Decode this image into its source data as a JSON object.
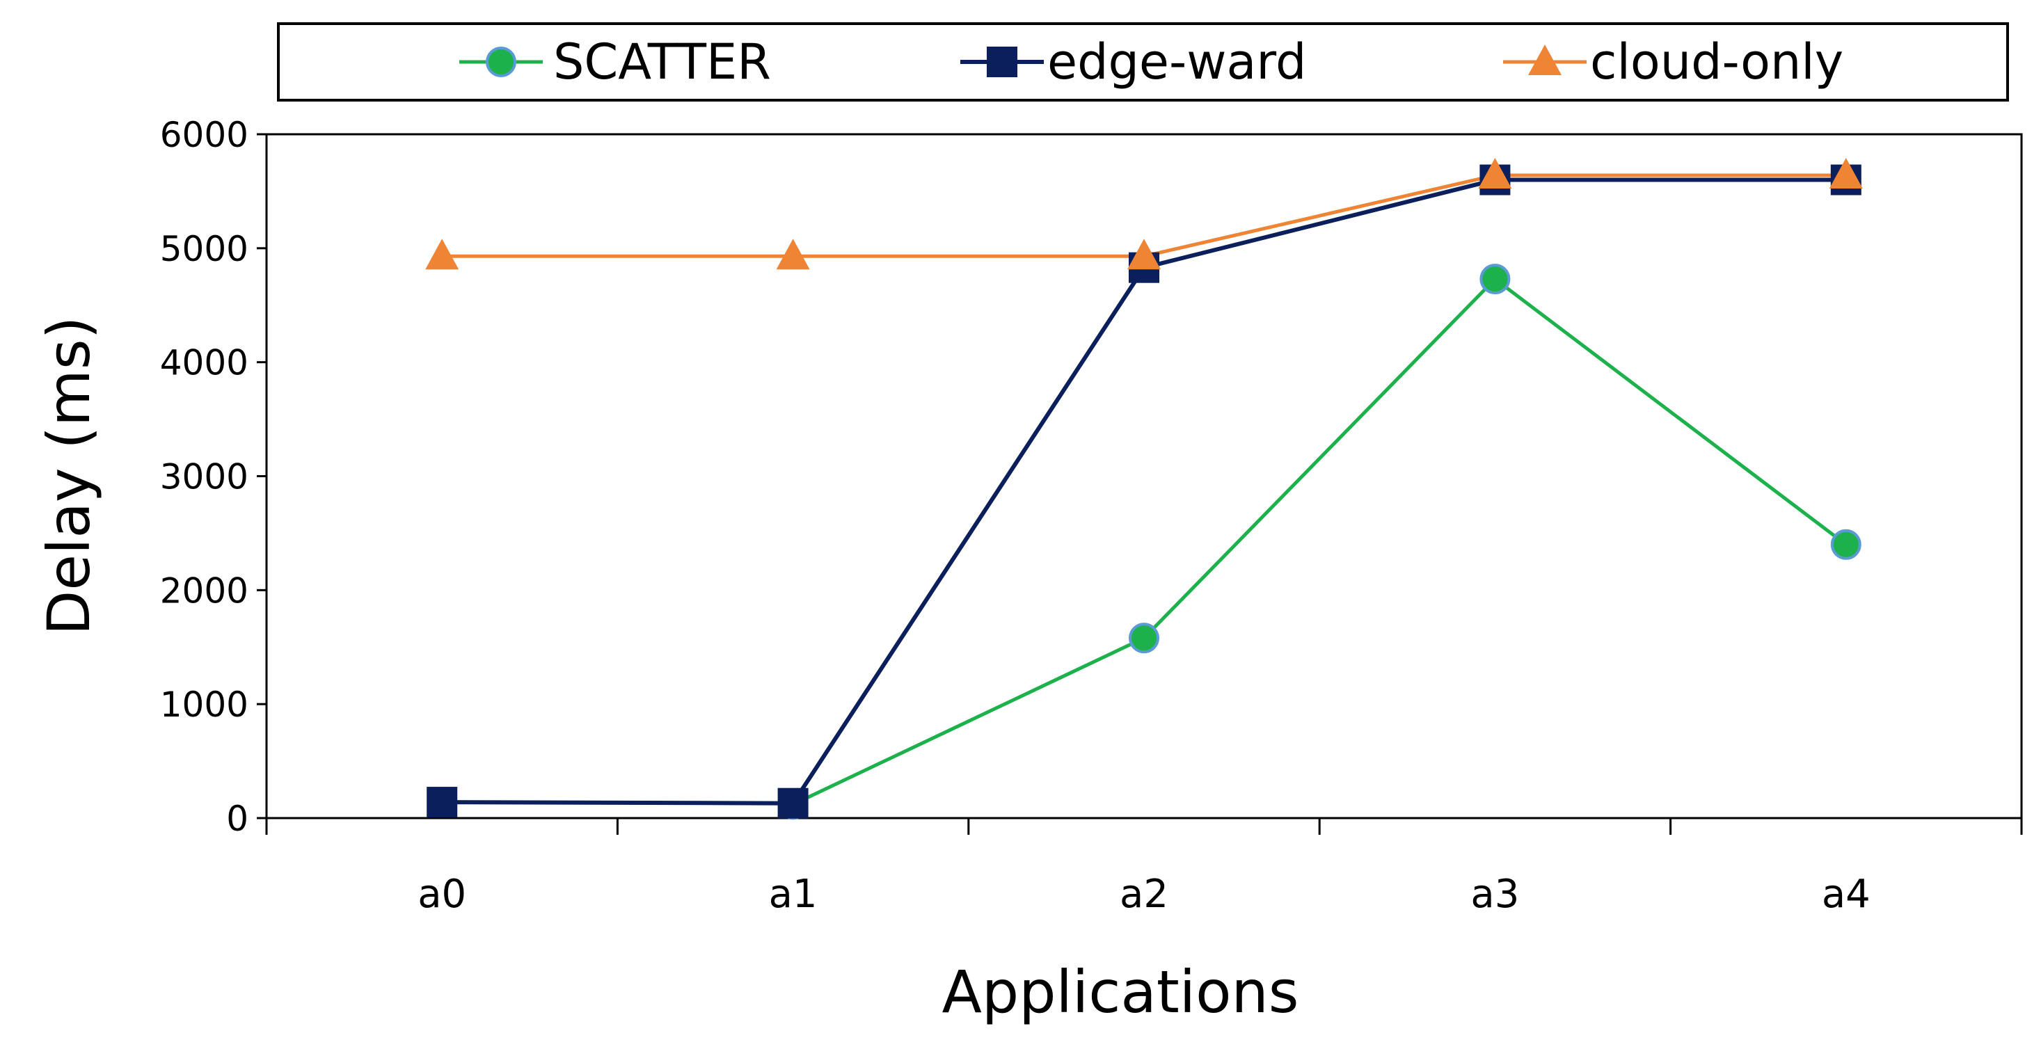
{
  "chart_data": {
    "type": "line",
    "xlabel": "Applications",
    "ylabel": "Delay (ms)",
    "categories": [
      "a0",
      "a1",
      "a2",
      "a3",
      "a4"
    ],
    "ylim": [
      0,
      6000
    ],
    "yticks": [
      "0",
      "1000",
      "2000",
      "3000",
      "4000",
      "5000",
      "6000"
    ],
    "ytick_values": [
      0,
      1000,
      2000,
      3000,
      4000,
      5000,
      6000
    ],
    "grid": false,
    "legend_position": "top",
    "series": [
      {
        "name": "SCATTER",
        "values": [
          null,
          120,
          1580,
          4730,
          2400
        ],
        "color": "#1db14b",
        "marker_edge": "#5b9bd5",
        "marker": "circle"
      },
      {
        "name": "edge-ward",
        "values": [
          140,
          130,
          4830,
          5600,
          5600
        ],
        "color": "#0b1f5c",
        "marker": "square"
      },
      {
        "name": "cloud-only",
        "values": [
          4930,
          4930,
          4930,
          5640,
          5640
        ],
        "color": "#ef8435",
        "marker": "triangle"
      }
    ]
  }
}
